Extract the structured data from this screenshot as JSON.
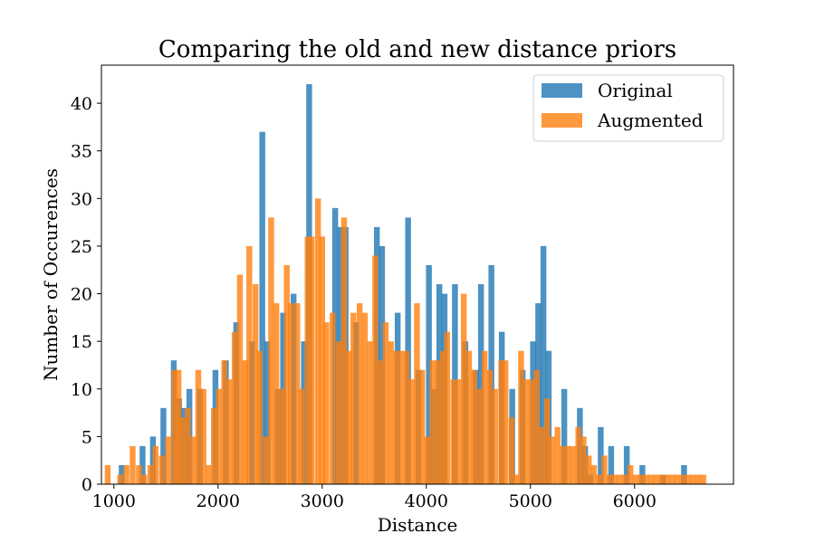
{
  "chart_data": {
    "type": "bar",
    "title": "Comparing the old and new distance priors",
    "xlabel": "Distance",
    "ylabel": "Number of Occurences",
    "xlim": [
      880,
      6950
    ],
    "ylim": [
      0,
      44
    ],
    "xticks": [
      1000,
      2000,
      3000,
      4000,
      5000,
      6000
    ],
    "yticks": [
      0,
      5,
      10,
      15,
      20,
      25,
      30,
      35,
      40
    ],
    "grid": false,
    "legend_position": "top-right",
    "bin_width": 56,
    "series": [
      {
        "name": "Original",
        "color": "#1f77b4",
        "opacity": 0.8,
        "bins": [
          [
            1075,
            2
          ],
          [
            1275,
            4
          ],
          [
            1375,
            5
          ],
          [
            1475,
            8
          ],
          [
            1575,
            13
          ],
          [
            1625,
            9
          ],
          [
            1675,
            8
          ],
          [
            1725,
            10
          ],
          [
            1825,
            10
          ],
          [
            1975,
            12
          ],
          [
            2075,
            13
          ],
          [
            2175,
            17
          ],
          [
            2325,
            15
          ],
          [
            2425,
            37
          ],
          [
            2475,
            15
          ],
          [
            2575,
            10
          ],
          [
            2625,
            18
          ],
          [
            2725,
            20
          ],
          [
            2825,
            15
          ],
          [
            2875,
            42
          ],
          [
            3125,
            29
          ],
          [
            3175,
            27
          ],
          [
            3225,
            27
          ],
          [
            3325,
            17
          ],
          [
            3525,
            27
          ],
          [
            3575,
            25
          ],
          [
            3725,
            18
          ],
          [
            3825,
            28
          ],
          [
            3925,
            12
          ],
          [
            4025,
            23
          ],
          [
            4075,
            10
          ],
          [
            4125,
            21
          ],
          [
            4175,
            20
          ],
          [
            4275,
            21
          ],
          [
            4375,
            15
          ],
          [
            4475,
            12
          ],
          [
            4525,
            21
          ],
          [
            4625,
            23
          ],
          [
            4725,
            16
          ],
          [
            4825,
            10
          ],
          [
            4925,
            12
          ],
          [
            5025,
            15
          ],
          [
            5075,
            19
          ],
          [
            5125,
            25
          ],
          [
            5175,
            14
          ],
          [
            5325,
            10
          ],
          [
            5475,
            8
          ],
          [
            5525,
            4
          ],
          [
            5575,
            1
          ],
          [
            5675,
            6
          ],
          [
            5775,
            4
          ],
          [
            5925,
            4
          ],
          [
            6075,
            2
          ],
          [
            6275,
            1
          ],
          [
            6475,
            2
          ]
        ]
      },
      {
        "name": "Augmented",
        "color": "#ff7f0e",
        "opacity": 0.8,
        "bins": [
          [
            940,
            2
          ],
          [
            1060,
            1
          ],
          [
            1120,
            2
          ],
          [
            1180,
            4
          ],
          [
            1240,
            2
          ],
          [
            1290,
            1
          ],
          [
            1350,
            2
          ],
          [
            1400,
            4
          ],
          [
            1460,
            3
          ],
          [
            1520,
            5
          ],
          [
            1580,
            12
          ],
          [
            1620,
            12
          ],
          [
            1660,
            7
          ],
          [
            1710,
            8
          ],
          [
            1760,
            5
          ],
          [
            1810,
            12
          ],
          [
            1860,
            10
          ],
          [
            1910,
            2
          ],
          [
            1960,
            8
          ],
          [
            2010,
            10
          ],
          [
            2060,
            13
          ],
          [
            2110,
            11
          ],
          [
            2160,
            16
          ],
          [
            2210,
            22
          ],
          [
            2260,
            13
          ],
          [
            2300,
            25
          ],
          [
            2360,
            21
          ],
          [
            2400,
            14
          ],
          [
            2460,
            5
          ],
          [
            2510,
            28
          ],
          [
            2560,
            19
          ],
          [
            2610,
            10
          ],
          [
            2660,
            23
          ],
          [
            2700,
            19
          ],
          [
            2760,
            19
          ],
          [
            2800,
            10
          ],
          [
            2860,
            26
          ],
          [
            2900,
            26
          ],
          [
            2960,
            30
          ],
          [
            3000,
            26
          ],
          [
            3040,
            17
          ],
          [
            3100,
            18
          ],
          [
            3160,
            15
          ],
          [
            3210,
            28
          ],
          [
            3260,
            14
          ],
          [
            3300,
            18
          ],
          [
            3360,
            19
          ],
          [
            3410,
            18
          ],
          [
            3460,
            15
          ],
          [
            3510,
            24
          ],
          [
            3560,
            13
          ],
          [
            3610,
            17
          ],
          [
            3660,
            15
          ],
          [
            3710,
            14
          ],
          [
            3760,
            14
          ],
          [
            3810,
            14
          ],
          [
            3860,
            11
          ],
          [
            3910,
            19
          ],
          [
            3960,
            12
          ],
          [
            4010,
            5
          ],
          [
            4060,
            13
          ],
          [
            4110,
            13
          ],
          [
            4160,
            14
          ],
          [
            4200,
            16
          ],
          [
            4260,
            11
          ],
          [
            4310,
            11
          ],
          [
            4360,
            20
          ],
          [
            4410,
            14
          ],
          [
            4460,
            12
          ],
          [
            4510,
            10
          ],
          [
            4560,
            14
          ],
          [
            4610,
            12
          ],
          [
            4660,
            10
          ],
          [
            4720,
            13
          ],
          [
            4760,
            13
          ],
          [
            4820,
            7
          ],
          [
            4860,
            1
          ],
          [
            4910,
            14
          ],
          [
            4960,
            11
          ],
          [
            5010,
            11
          ],
          [
            5060,
            12
          ],
          [
            5110,
            6
          ],
          [
            5160,
            9
          ],
          [
            5210,
            5
          ],
          [
            5260,
            6
          ],
          [
            5310,
            4
          ],
          [
            5360,
            4
          ],
          [
            5410,
            4
          ],
          [
            5460,
            6
          ],
          [
            5510,
            5
          ],
          [
            5560,
            3
          ],
          [
            5610,
            2
          ],
          [
            5660,
            1
          ],
          [
            5710,
            3
          ],
          [
            5760,
            1
          ],
          [
            5810,
            1
          ],
          [
            5860,
            1
          ],
          [
            5910,
            1
          ],
          [
            5960,
            2
          ],
          [
            6010,
            1
          ],
          [
            6060,
            1
          ],
          [
            6110,
            1
          ],
          [
            6160,
            1
          ],
          [
            6210,
            1
          ],
          [
            6260,
            1
          ],
          [
            6310,
            1
          ],
          [
            6360,
            1
          ],
          [
            6410,
            1
          ],
          [
            6460,
            1
          ],
          [
            6510,
            1
          ],
          [
            6560,
            1
          ],
          [
            6610,
            1
          ],
          [
            6660,
            1
          ]
        ]
      }
    ]
  }
}
